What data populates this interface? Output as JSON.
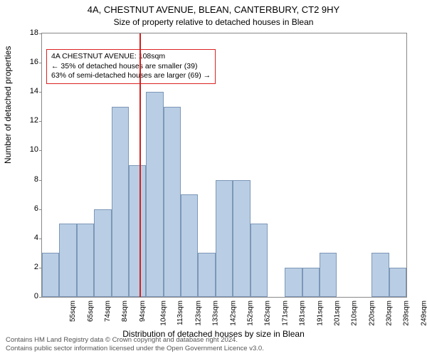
{
  "title": "4A, CHESTNUT AVENUE, BLEAN, CANTERBURY, CT2 9HY",
  "subtitle": "Size of property relative to detached houses in Blean",
  "ylabel": "Number of detached properties",
  "xlabel": "Distribution of detached houses by size in Blean",
  "credit1": "Contains HM Land Registry data © Crown copyright and database right 2024.",
  "credit2": "Contains public sector information licensed under the Open Government Licence v3.0.",
  "chart": {
    "type": "histogram",
    "ylim": [
      0,
      18
    ],
    "ytick_step": 2,
    "bar_fill": "#b9cee4",
    "bar_border": "#7d97b8",
    "background": "#ffffff",
    "axis_color": "#888888",
    "refline_color": "#d02020",
    "refline_at": 108,
    "refline_bin_edge_index": 5.6,
    "title_fontsize": 13,
    "subtitle_fontsize": 12,
    "label_fontsize": 12,
    "tick_fontsize": 10,
    "categories": [
      "55sqm",
      "65sqm",
      "74sqm",
      "84sqm",
      "94sqm",
      "104sqm",
      "113sqm",
      "123sqm",
      "133sqm",
      "142sqm",
      "152sqm",
      "162sqm",
      "171sqm",
      "181sqm",
      "191sqm",
      "201sqm",
      "210sqm",
      "220sqm",
      "230sqm",
      "239sqm",
      "249sqm"
    ],
    "values": [
      3,
      5,
      5,
      6,
      13,
      9,
      14,
      13,
      7,
      3,
      8,
      8,
      5,
      0,
      2,
      2,
      3,
      0,
      0,
      3,
      2
    ]
  },
  "annotation": {
    "line1": "4A CHESTNUT AVENUE: 108sqm",
    "line2": "← 35% of detached houses are smaller (39)",
    "line3": "63% of semi-detached houses are larger (69) →"
  }
}
